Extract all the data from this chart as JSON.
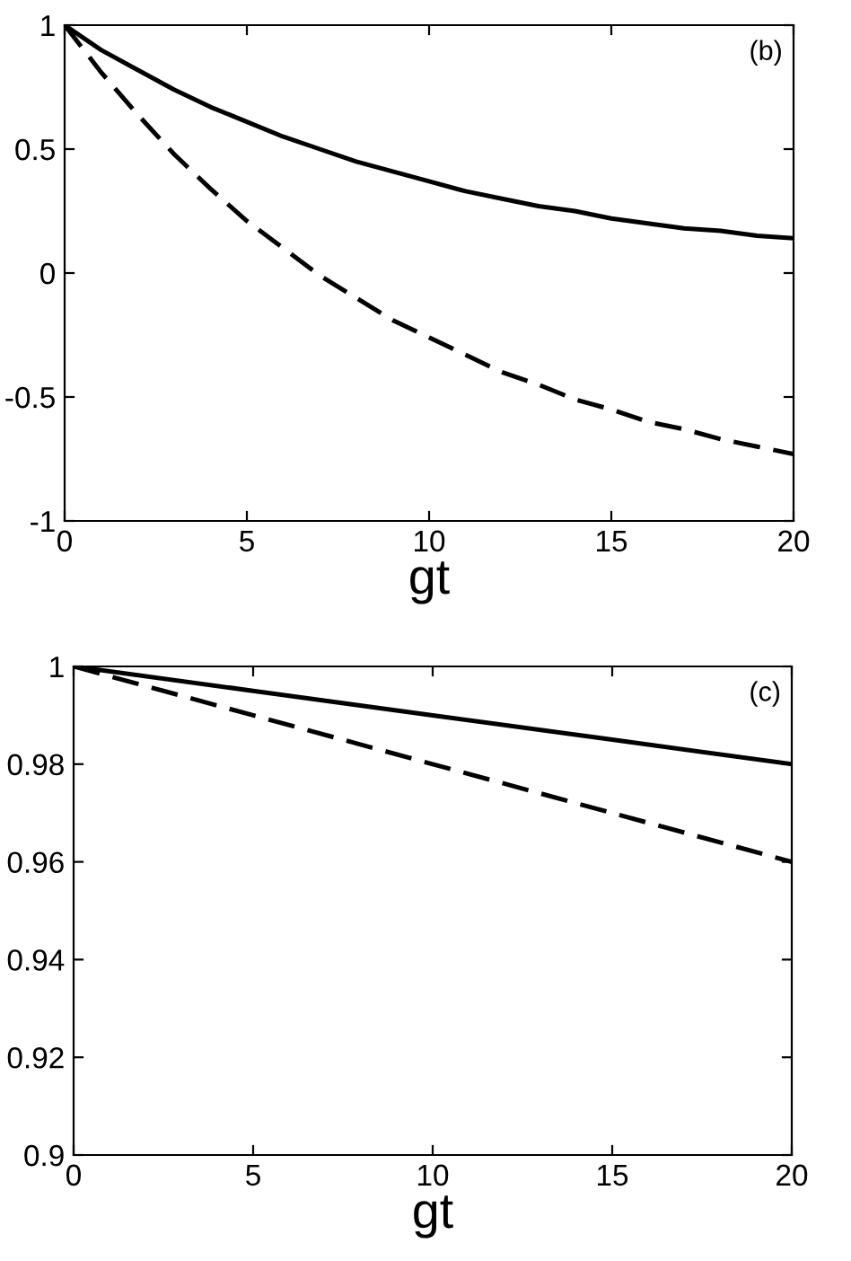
{
  "chart_data": [
    {
      "type": "line",
      "xlabel": "gt",
      "annotations": [
        "(b)"
      ],
      "x": [
        0,
        1,
        2,
        3,
        4,
        5,
        6,
        7,
        8,
        9,
        10,
        11,
        12,
        13,
        14,
        15,
        16,
        17,
        18,
        19,
        20
      ],
      "series": [
        {
          "color": "#000000",
          "line_style": "solid",
          "values": [
            1.0,
            0.9,
            0.82,
            0.74,
            0.67,
            0.61,
            0.55,
            0.5,
            0.45,
            0.41,
            0.37,
            0.33,
            0.3,
            0.27,
            0.25,
            0.22,
            0.2,
            0.18,
            0.17,
            0.15,
            0.14
          ]
        },
        {
          "color": "#000000",
          "line_style": "dashed",
          "values": [
            1.0,
            0.81,
            0.64,
            0.48,
            0.34,
            0.21,
            0.1,
            -0.01,
            -0.1,
            -0.19,
            -0.26,
            -0.33,
            -0.4,
            -0.45,
            -0.51,
            -0.55,
            -0.6,
            -0.63,
            -0.67,
            -0.7,
            -0.73
          ]
        }
      ],
      "xlim": [
        0,
        20
      ],
      "xticks": [
        0,
        5,
        10,
        15,
        20
      ],
      "ylim": [
        -1,
        1
      ],
      "yticks": [
        -1,
        -0.5,
        0,
        0.5,
        1
      ],
      "marker": "none"
    },
    {
      "type": "line",
      "xlabel": "gt",
      "annotations": [
        "(c)"
      ],
      "x": [
        0,
        5,
        10,
        15,
        20
      ],
      "series": [
        {
          "color": "#000000",
          "line_style": "solid",
          "values": [
            1.0,
            0.995,
            0.99,
            0.985,
            0.98
          ]
        },
        {
          "color": "#000000",
          "line_style": "dashed",
          "values": [
            1.0,
            0.99,
            0.98,
            0.97,
            0.96
          ]
        }
      ],
      "xlim": [
        0,
        20
      ],
      "xticks": [
        0,
        5,
        10,
        15,
        20
      ],
      "ylim": [
        0.9,
        1
      ],
      "yticks": [
        0.9,
        0.92,
        0.94,
        0.96,
        0.98,
        1
      ],
      "marker": "none"
    }
  ]
}
